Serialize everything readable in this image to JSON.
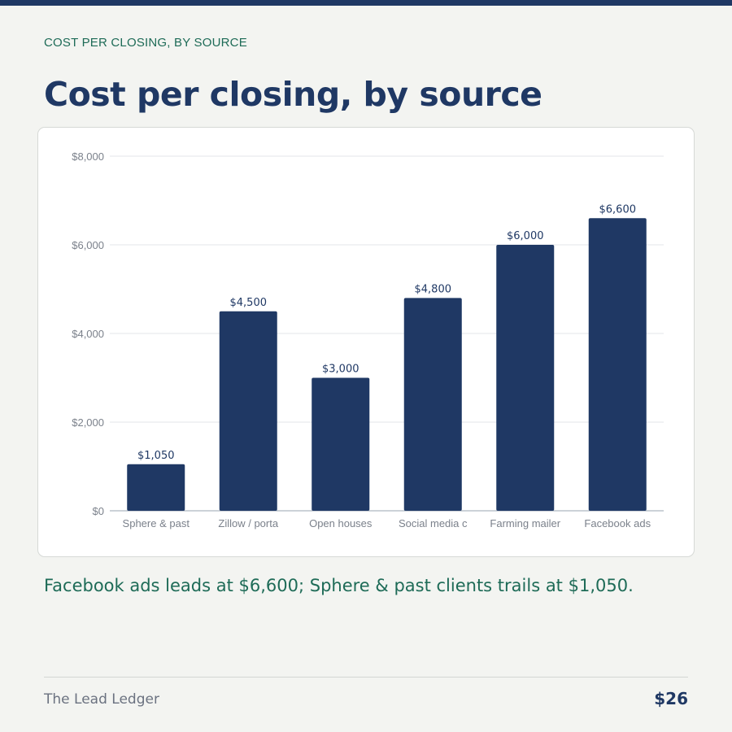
{
  "header": {
    "eyebrow": "COST PER CLOSING, BY SOURCE",
    "title": "Cost per closing, by source"
  },
  "insight": "Facebook ads leads at $6,600; Sphere & past clients trails at $1,050.",
  "footer": {
    "publication": "The Lead Ledger",
    "page_number": "$26"
  },
  "colors": {
    "bar": "#1f3864",
    "accent": "#1e6b57",
    "grid": "#e3e5e8"
  },
  "chart_data": {
    "type": "bar",
    "categories": [
      "Sphere & past",
      "Zillow / porta",
      "Open houses",
      "Social media c",
      "Farming mailer",
      "Facebook ads"
    ],
    "values": [
      1050,
      4500,
      3000,
      4800,
      6000,
      6600
    ],
    "value_labels": [
      "$1,050",
      "$4,500",
      "$3,000",
      "$4,800",
      "$6,000",
      "$6,600"
    ],
    "yticks": [
      0,
      2000,
      4000,
      6000,
      8000
    ],
    "ytick_labels": [
      "$0",
      "$2,000",
      "$4,000",
      "$6,000",
      "$8,000"
    ],
    "ylim": [
      0,
      8000
    ],
    "grid": true,
    "legend": "none"
  }
}
